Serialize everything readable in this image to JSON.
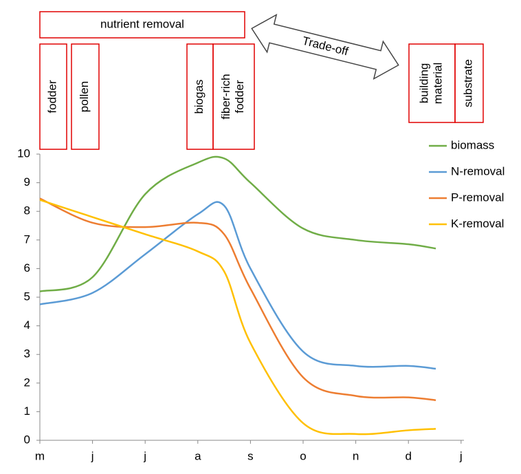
{
  "chart_data": {
    "type": "line",
    "annotations": [
      "nutrient removal",
      "fodder",
      "pollen",
      "biogas",
      "fiber-rich fodder",
      "building material",
      "substrate"
    ],
    "arrow_label": "Trade-off",
    "x": [
      0,
      1,
      2,
      3,
      3.5,
      4,
      5,
      6,
      7,
      7.52
    ],
    "xlim": [
      0,
      8
    ],
    "xticks": [
      {
        "value": 0,
        "label": "m"
      },
      {
        "value": 1,
        "label": "j"
      },
      {
        "value": 2,
        "label": "j"
      },
      {
        "value": 3,
        "label": "a"
      },
      {
        "value": 4,
        "label": "s"
      },
      {
        "value": 5,
        "label": "o"
      },
      {
        "value": 6,
        "label": "n"
      },
      {
        "value": 7,
        "label": "d"
      },
      {
        "value": 8,
        "label": "j"
      }
    ],
    "ylim": [
      0,
      10
    ],
    "yticks": [
      0,
      1,
      2,
      3,
      4,
      5,
      6,
      7,
      8,
      9,
      10
    ],
    "series": [
      {
        "name": "biomass",
        "color": "#70ad47",
        "values": [
          5.2,
          5.7,
          8.6,
          9.7,
          9.85,
          9.0,
          7.4,
          7.0,
          6.85,
          6.7
        ]
      },
      {
        "name": "N-removal",
        "color": "#5b9bd5",
        "values": [
          4.75,
          5.15,
          6.5,
          7.9,
          8.2,
          6.0,
          3.1,
          2.6,
          2.6,
          2.5
        ]
      },
      {
        "name": "P-removal",
        "color": "#ed7d31",
        "values": [
          8.45,
          7.6,
          7.45,
          7.6,
          7.2,
          5.3,
          2.2,
          1.55,
          1.5,
          1.4
        ]
      },
      {
        "name": "K-removal",
        "color": "#ffc000",
        "values": [
          8.4,
          7.8,
          7.2,
          6.6,
          5.9,
          3.4,
          0.6,
          0.22,
          0.35,
          0.4
        ]
      }
    ]
  }
}
